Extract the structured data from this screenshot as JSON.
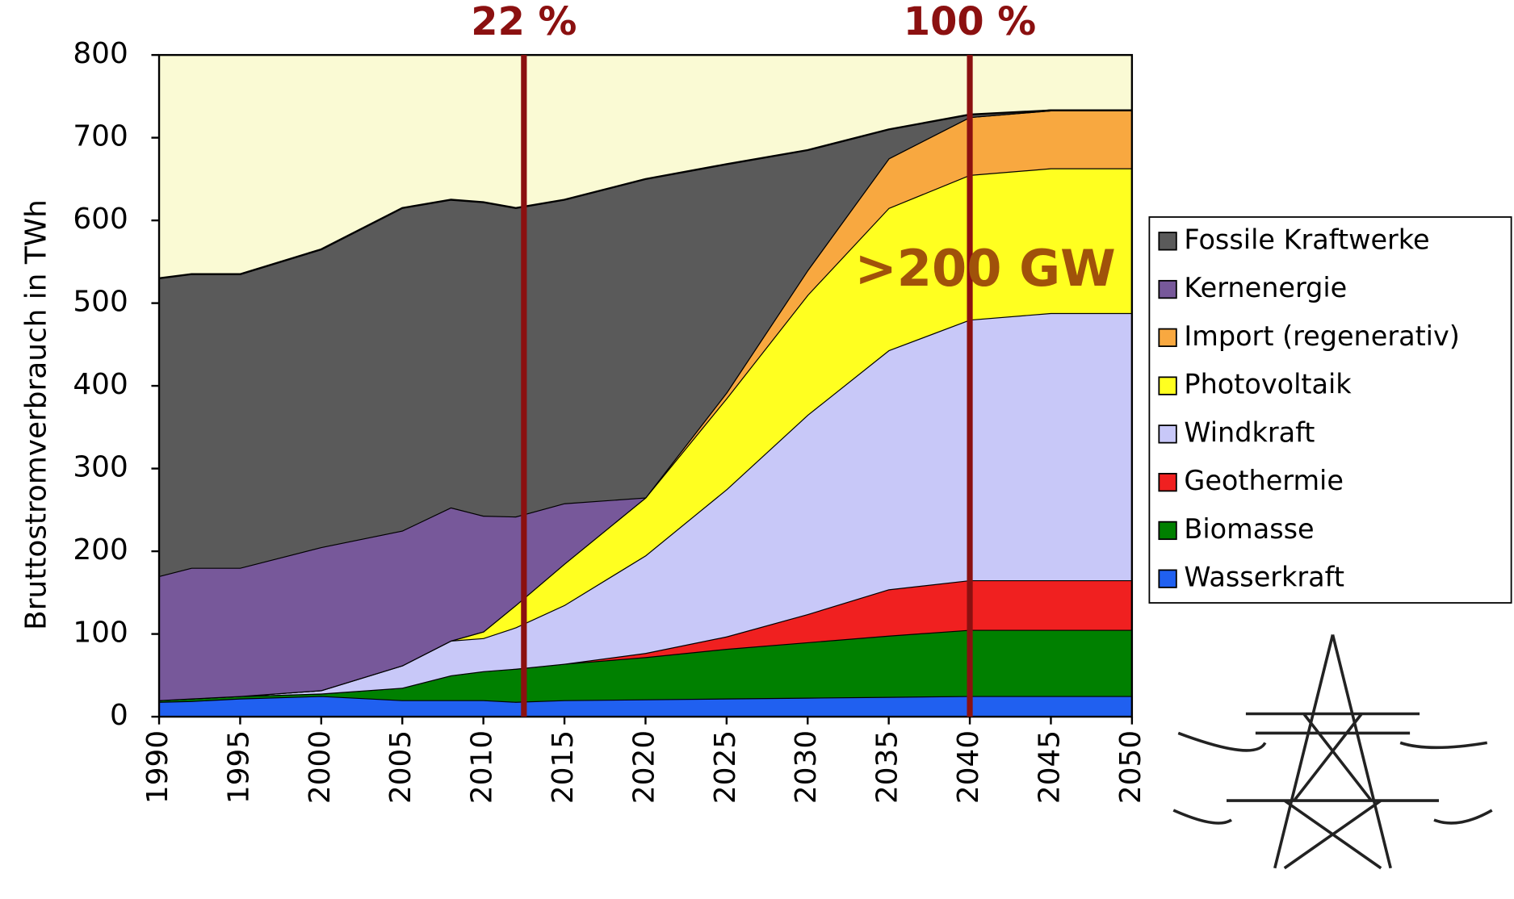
{
  "chart_data": {
    "type": "stacked_area",
    "y_label": "Bruttostromverbrauch in TWh",
    "x": [
      1990,
      1992,
      1995,
      2000,
      2005,
      2008,
      2010,
      2012,
      2015,
      2020,
      2025,
      2030,
      2035,
      2040,
      2045,
      2050
    ],
    "xlim": [
      1990,
      2050
    ],
    "xticks": [
      1990,
      1995,
      2000,
      2005,
      2010,
      2015,
      2020,
      2025,
      2030,
      2035,
      2040,
      2045,
      2050
    ],
    "ylim": [
      0,
      800
    ],
    "yticks": [
      0,
      100,
      200,
      300,
      400,
      500,
      600,
      700,
      800
    ],
    "series": [
      {
        "name": "Wasserkraft",
        "color": "#2060f0",
        "values": [
          18,
          19,
          22,
          25,
          20,
          20,
          20,
          18,
          20,
          21,
          22,
          23,
          24,
          25,
          25,
          25
        ]
      },
      {
        "name": "Biomasse",
        "color": "#008000",
        "values": [
          2,
          3,
          3,
          3,
          15,
          30,
          35,
          40,
          44,
          51,
          60,
          67,
          74,
          80,
          80,
          80
        ]
      },
      {
        "name": "Geothermie",
        "color": "#f02020",
        "values": [
          0,
          0,
          0,
          0,
          0,
          0,
          0,
          0,
          0,
          5,
          15,
          34,
          56,
          60,
          60,
          60
        ]
      },
      {
        "name": "Windkraft",
        "color": "#c8c8f8",
        "values": [
          0,
          0,
          0,
          4,
          27,
          42,
          40,
          50,
          71,
          118,
          178,
          241,
          289,
          315,
          323,
          323
        ]
      },
      {
        "name": "Photovoltaik",
        "color": "#ffff20",
        "values": [
          0,
          0,
          0,
          0,
          0,
          0,
          8,
          27,
          50,
          70,
          110,
          145,
          172,
          175,
          175,
          175
        ]
      },
      {
        "name": "Import (regenerativ)",
        "color": "#f8a840",
        "values": [
          0,
          0,
          0,
          0,
          0,
          0,
          0,
          0,
          0,
          0,
          7,
          30,
          60,
          70,
          70,
          70
        ]
      },
      {
        "name": "Kernenergie",
        "color": "#77589a",
        "values": [
          150,
          158,
          155,
          173,
          163,
          161,
          140,
          107,
          73,
          0,
          0,
          0,
          0,
          0,
          0,
          0
        ]
      },
      {
        "name": "Fossile Kraftwerke",
        "color": "#5a5a5a",
        "values": [
          360,
          355,
          355,
          360,
          390,
          372,
          379,
          373,
          367,
          385,
          276,
          145,
          35,
          3,
          0,
          0
        ]
      }
    ],
    "annotations": [
      {
        "text": "22 %",
        "x": 2012.5
      },
      {
        "text": "100 %",
        "x": 2040
      },
      {
        "text": ">200 GW"
      }
    ],
    "annotation_color": "#8b1010",
    "background": "#fafad4"
  }
}
